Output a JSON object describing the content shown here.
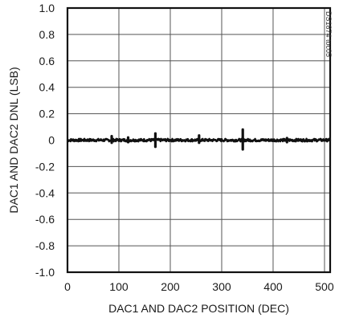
{
  "chart_data": {
    "type": "line",
    "title": "",
    "xlabel": "DAC1 AND DAC2 POSITION (DEC)",
    "ylabel": "DAC1 AND DAC2 DNL (LSB)",
    "xlim": [
      0,
      511
    ],
    "ylim": [
      -1.0,
      1.0
    ],
    "xticks": [
      0,
      100,
      200,
      300,
      400,
      500
    ],
    "xtick_labels": [
      "0",
      "100",
      "200",
      "300",
      "400",
      "500"
    ],
    "yticks": [
      1.0,
      0.8,
      0.6,
      0.4,
      0.2,
      0,
      -0.2,
      -0.4,
      -0.6,
      -0.8,
      -1.0
    ],
    "ytick_labels": [
      "1.0",
      "0.8",
      "0.6",
      "0.4",
      "0.2",
      "0",
      "-0.2",
      "-0.4",
      "-0.6",
      "-0.8",
      "-1.0"
    ],
    "grid": true,
    "series": [
      {
        "color": "#111111",
        "baseline": 0.0,
        "noise_band": 0.01,
        "spikes": [
          {
            "x": 86,
            "ymin": -0.02,
            "ymax": 0.03
          },
          {
            "x": 118,
            "ymin": -0.015,
            "ymax": 0.02
          },
          {
            "x": 171,
            "ymin": -0.05,
            "ymax": 0.05
          },
          {
            "x": 256,
            "ymin": -0.02,
            "ymax": 0.035
          },
          {
            "x": 341,
            "ymin": -0.07,
            "ymax": 0.08
          },
          {
            "x": 427,
            "ymin": -0.015,
            "ymax": 0.015
          }
        ]
      }
    ],
    "annotation": "DS1874 toc05"
  }
}
